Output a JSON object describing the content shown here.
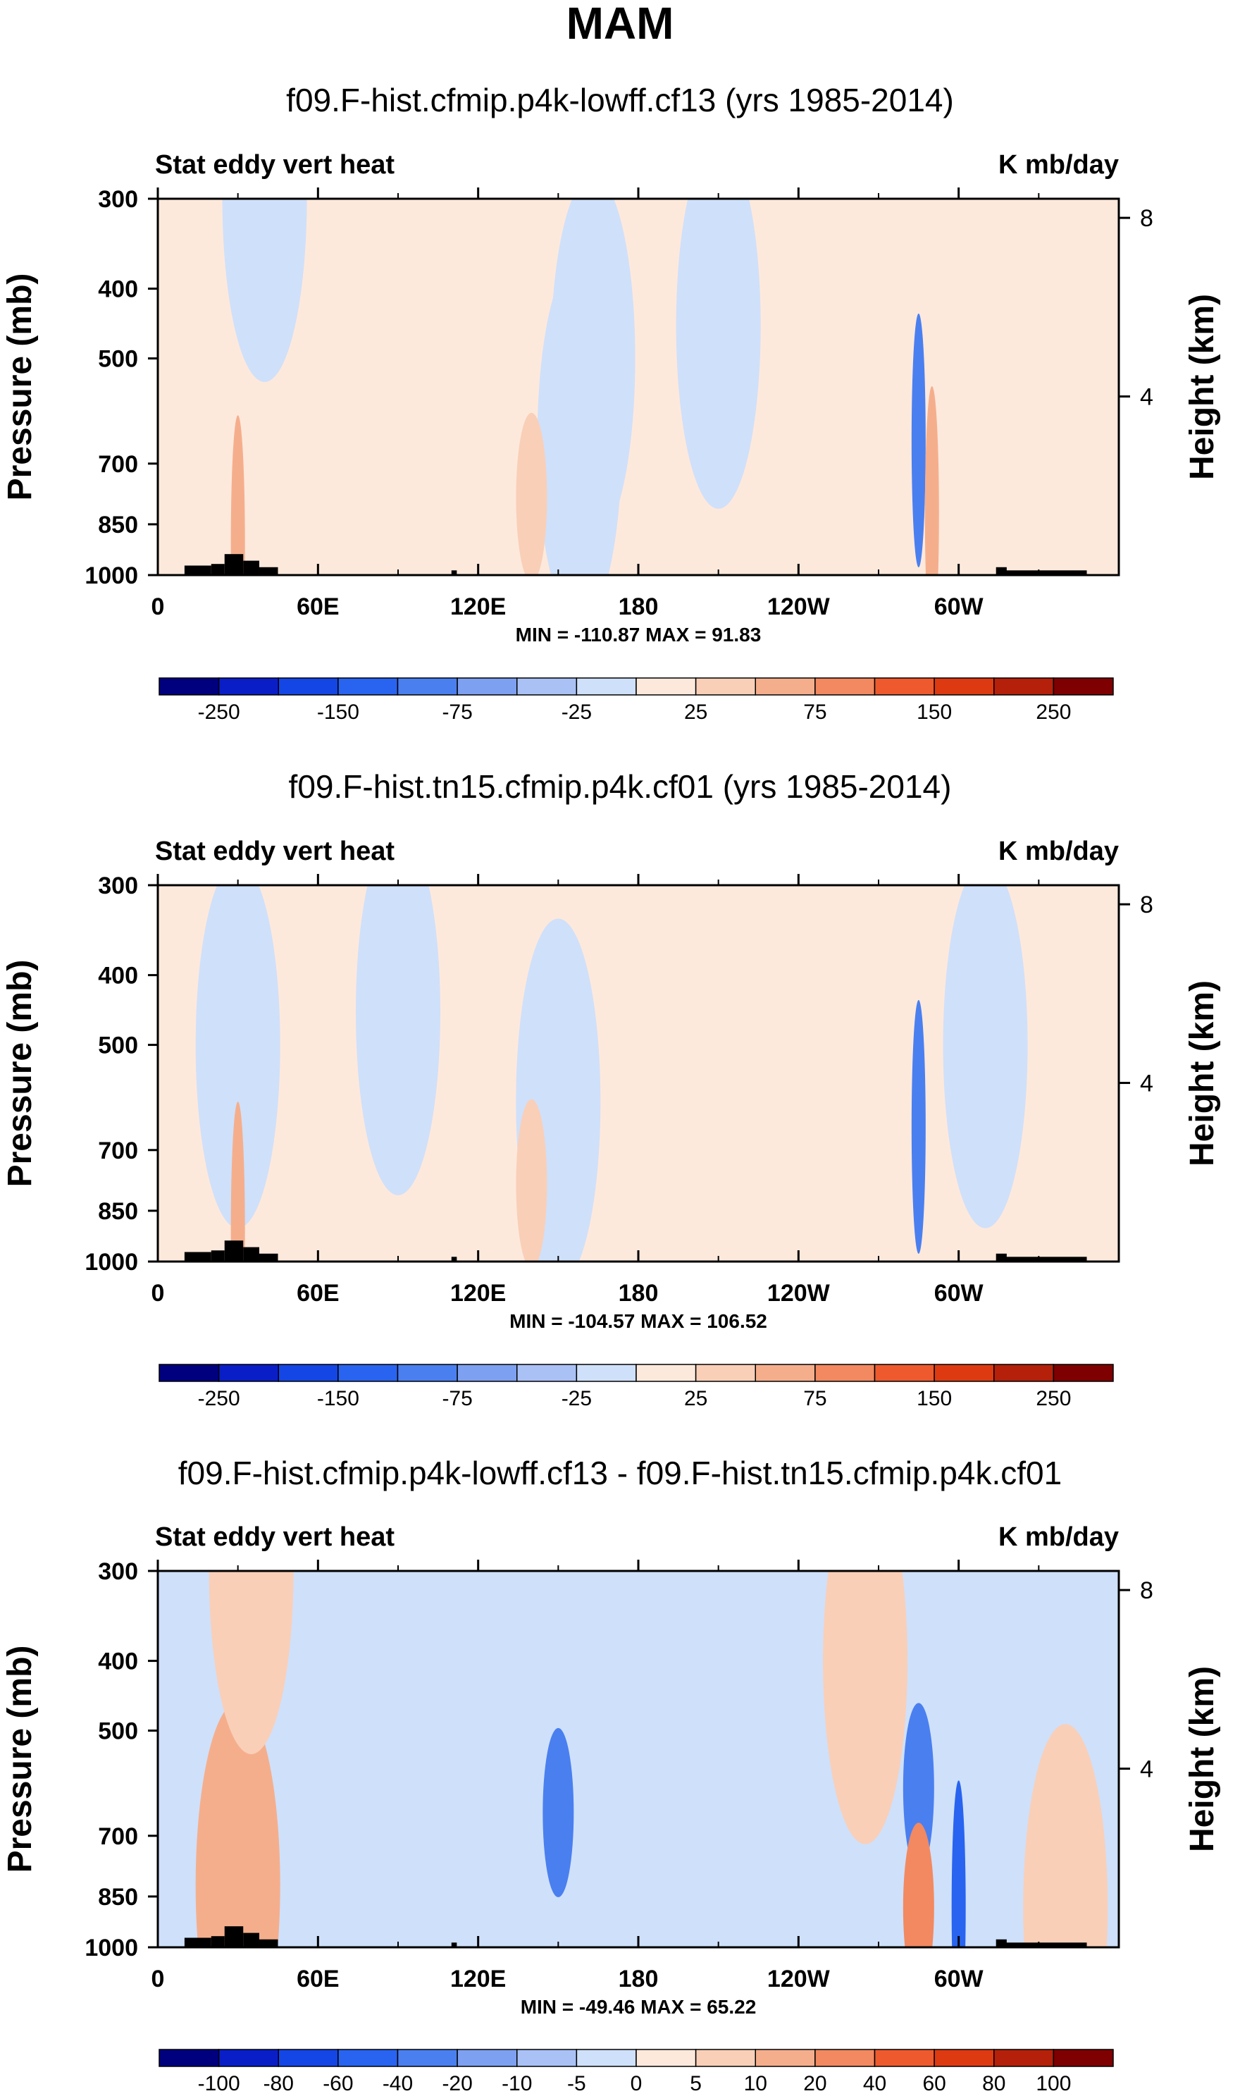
{
  "page_title": "MAM",
  "chart_data": [
    {
      "type": "heatmap",
      "title": "f09.F-hist.cfmip.p4k-lowff.cf13 (yrs 1985-2014)",
      "left_label": "Stat eddy vert heat",
      "right_label": "K mb/day",
      "ylabel": "Pressure (mb)",
      "ylabel_right": "Height (km)",
      "x_ticks": [
        "0",
        "60E",
        "120E",
        "180",
        "120W",
        "60W"
      ],
      "y_ticks": [
        "300",
        "400",
        "500",
        "700",
        "850",
        "1000"
      ],
      "y_ticks_right": [
        "8",
        "4"
      ],
      "stats": "MIN = -110.87  MAX = 91.83",
      "colorbar_labels": [
        "-250",
        "-150",
        "-75",
        "-25",
        "25",
        "75",
        "150",
        "250"
      ],
      "colorbar_colors": [
        "#00007f",
        "#0a1ec8",
        "#1446e6",
        "#2864f0",
        "#4a7ff0",
        "#7da0f0",
        "#a9c1f5",
        "#cfe0fa",
        "#fde9dc",
        "#f9cfb8",
        "#f5ae8c",
        "#f28960",
        "#ee5a2d",
        "#dd3a12",
        "#b4200a",
        "#7f0000"
      ],
      "features": [
        {
          "lon": 40,
          "plev": 300,
          "value": -12,
          "note": "light blue column 0-60E"
        },
        {
          "lon": 158,
          "plev": 650,
          "value": -20,
          "note": "blue column 150E"
        },
        {
          "lon": 163,
          "plev": 500,
          "value": -15,
          "note": "blue band"
        },
        {
          "lon": 210,
          "plev": 450,
          "value": -10,
          "note": "light blue region"
        },
        {
          "lon": 285,
          "plev": 650,
          "value": -90,
          "note": "strong negative near 75W"
        },
        {
          "lon": 290,
          "plev": 820,
          "value": 50,
          "note": "positive near 70W"
        },
        {
          "lon": 140,
          "plev": 780,
          "value": 30,
          "note": "positive spot 140E"
        },
        {
          "lon": 30,
          "plev": 900,
          "value": 60,
          "note": "positive near surface 30E"
        }
      ]
    },
    {
      "type": "heatmap",
      "title": "f09.F-hist.tn15.cfmip.p4k.cf01 (yrs 1985-2014)",
      "left_label": "Stat eddy vert heat",
      "right_label": "K mb/day",
      "ylabel": "Pressure (mb)",
      "ylabel_right": "Height (km)",
      "x_ticks": [
        "0",
        "60E",
        "120E",
        "180",
        "120W",
        "60W"
      ],
      "y_ticks": [
        "300",
        "400",
        "500",
        "700",
        "850",
        "1000"
      ],
      "y_ticks_right": [
        "8",
        "4"
      ],
      "stats": "MIN = -104.57  MAX = 106.52",
      "colorbar_labels": [
        "-250",
        "-150",
        "-75",
        "-25",
        "25",
        "75",
        "150",
        "250"
      ],
      "colorbar_colors": [
        "#00007f",
        "#0a1ec8",
        "#1446e6",
        "#2864f0",
        "#4a7ff0",
        "#7da0f0",
        "#a9c1f5",
        "#cfe0fa",
        "#fde9dc",
        "#f9cfb8",
        "#f5ae8c",
        "#f28960",
        "#ee5a2d",
        "#dd3a12",
        "#b4200a",
        "#7f0000"
      ],
      "features": [
        {
          "lon": 30,
          "plev": 500,
          "value": -12,
          "note": "light blue column 0-60E"
        },
        {
          "lon": 90,
          "plev": 450,
          "value": -10,
          "note": "light blue 90E"
        },
        {
          "lon": 150,
          "plev": 600,
          "value": -12,
          "note": "light blue 150E"
        },
        {
          "lon": 285,
          "plev": 650,
          "value": -80,
          "note": "strong negative near 75W"
        },
        {
          "lon": 310,
          "plev": 500,
          "value": -15,
          "note": "light blue 50W"
        },
        {
          "lon": 140,
          "plev": 780,
          "value": 30,
          "note": "positive spot 140E"
        },
        {
          "lon": 30,
          "plev": 900,
          "value": 70,
          "note": "positive near surface 30E"
        }
      ]
    },
    {
      "type": "heatmap",
      "title": "f09.F-hist.cfmip.p4k-lowff.cf13 - f09.F-hist.tn15.cfmip.p4k.cf01",
      "left_label": "Stat eddy vert heat",
      "right_label": "K mb/day",
      "ylabel": "Pressure (mb)",
      "ylabel_right": "Height (km)",
      "x_ticks": [
        "0",
        "60E",
        "120E",
        "180",
        "120W",
        "60W"
      ],
      "y_ticks": [
        "300",
        "400",
        "500",
        "700",
        "850",
        "1000"
      ],
      "y_ticks_right": [
        "8",
        "4"
      ],
      "stats": "MIN = -49.46  MAX = 65.22",
      "colorbar_labels": [
        "-100",
        "-80",
        "-60",
        "-40",
        "-20",
        "-10",
        "-5",
        "0",
        "5",
        "10",
        "20",
        "40",
        "60",
        "80",
        "100"
      ],
      "colorbar_colors": [
        "#00007f",
        "#0a1ec8",
        "#1446e6",
        "#2864f0",
        "#4a7ff0",
        "#7da0f0",
        "#a9c1f5",
        "#cfe0fa",
        "#fde9dc",
        "#f9cfb8",
        "#f5ae8c",
        "#f28960",
        "#ee5a2d",
        "#dd3a12",
        "#b4200a",
        "#7f0000"
      ],
      "features": [
        {
          "lon": 150,
          "plev": 650,
          "value": -25,
          "note": "negative band 150E"
        },
        {
          "lon": 285,
          "plev": 600,
          "value": -30,
          "note": "negative near 75W"
        },
        {
          "lon": 300,
          "plev": 880,
          "value": -45,
          "note": "strong negative near 60W surface"
        },
        {
          "lon": 285,
          "plev": 880,
          "value": 30,
          "note": "positive near 75W surface"
        },
        {
          "lon": 30,
          "plev": 820,
          "value": 12,
          "note": "positive 30E"
        },
        {
          "lon": 35,
          "plev": 300,
          "value": 6,
          "note": "light positive upper 30E"
        },
        {
          "lon": 265,
          "plev": 400,
          "value": 6,
          "note": "light positive 95W"
        },
        {
          "lon": 340,
          "plev": 880,
          "value": 6,
          "note": "light positive 20W"
        }
      ]
    }
  ]
}
